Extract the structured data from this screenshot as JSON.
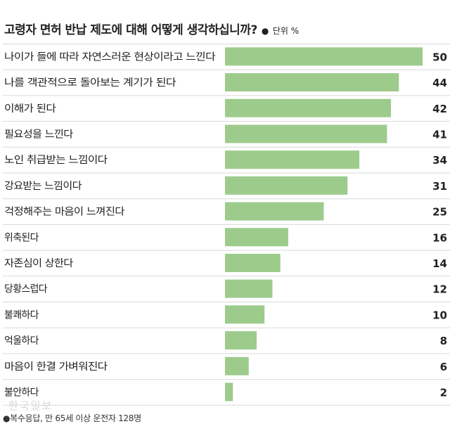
{
  "header": {
    "title": "고령자 면허 반납 제도에 대해 어떻게 생각하십니까?",
    "unit_marker": "●",
    "unit": "단위 %"
  },
  "chart_data": {
    "type": "bar",
    "orientation": "horizontal",
    "categories": [
      "나이가 들에 따라 자연스러운 현상이라고 느낀다",
      "나를 객관적으로 돌아보는 계기가 된다",
      "이해가 된다",
      "필요성을 느낀다",
      "노인 취급받는 느낌이다",
      "강요받는 느낌이다",
      "걱정해주는 마음이 느껴진다",
      "위축된다",
      "자존심이 상한다",
      "당황스럽다",
      "불쾌하다",
      "억울하다",
      "마음이 한결 가벼워진다",
      "불안하다"
    ],
    "values": [
      50,
      44,
      42,
      41,
      34,
      31,
      25,
      16,
      14,
      12,
      10,
      8,
      6,
      2
    ],
    "xlim": [
      0,
      50
    ],
    "bar_color": "#9dcb8c",
    "grid": false,
    "legend": "none"
  },
  "footnote": "●복수응답, 만 65세 이상 운전자 128명",
  "watermark": "한국일보"
}
